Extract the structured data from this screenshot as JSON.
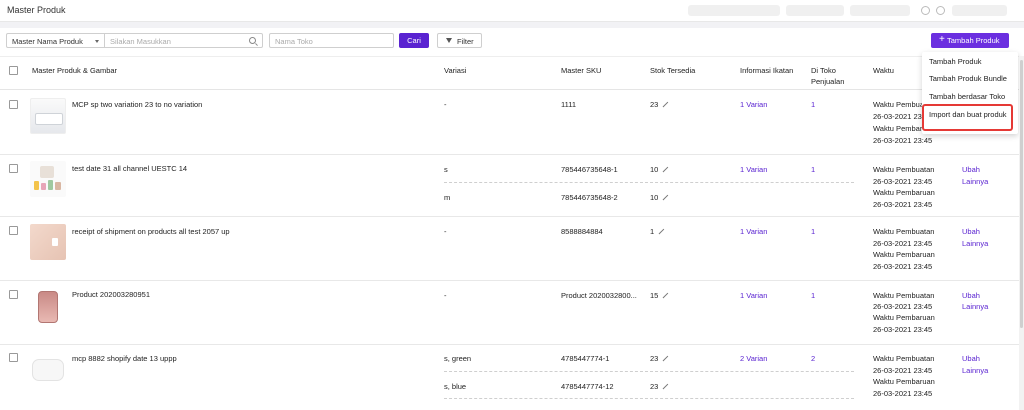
{
  "page": {
    "title": "Master Produk"
  },
  "filters": {
    "select_value": "Master Nama Produk",
    "search_placeholder": "Silakan Masukkan",
    "toko_placeholder": "Nama Toko",
    "cari_label": "Cari",
    "filter_label": "Filter",
    "tambah_label": "Tambah Produk"
  },
  "dropdown": {
    "items": [
      "Tambah Produk",
      "Tambah Produk Bundle",
      "Tambah berdasar Toko",
      "Import dan buat produk"
    ]
  },
  "table": {
    "headers": {
      "product": "Master Produk & Gambar",
      "variasi": "Variasi",
      "sku": "Master SKU",
      "stok": "Stok Tersedia",
      "ikatan": "Informasi Ikatan",
      "toko_1": "Di Toko",
      "toko_2": "Penjualan",
      "waktu": "Waktu"
    },
    "rows": [
      {
        "name": "MCP sp two variation 23 to no variation",
        "variants": [
          {
            "variasi": "-",
            "sku": "1111",
            "stok": "23"
          }
        ],
        "ikatan": "1 Varian",
        "toko": "1",
        "waktu": [
          "Waktu Pembuatan",
          "26-03-2021 23:45",
          "Waktu Pembaruan",
          "26-03-2021 23:45"
        ],
        "actions": []
      },
      {
        "name": "test date 31 all channel UESTC 14",
        "variants": [
          {
            "variasi": "s",
            "sku": "785446735648-1",
            "stok": "10"
          },
          {
            "variasi": "m",
            "sku": "785446735648-2",
            "stok": "10"
          }
        ],
        "ikatan": "1 Varian",
        "toko": "1",
        "waktu": [
          "Waktu Pembuatan",
          "26-03-2021 23:45",
          "Waktu Pembaruan",
          "26-03-2021 23:45"
        ],
        "actions": [
          "Ubah",
          "Lainnya"
        ]
      },
      {
        "name": "receipt of shipment on products all test 2057 up",
        "variants": [
          {
            "variasi": "-",
            "sku": "8588884884",
            "stok": "1"
          }
        ],
        "ikatan": "1 Varian",
        "toko": "1",
        "waktu": [
          "Waktu Pembuatan",
          "26-03-2021 23:45",
          "Waktu Pembaruan",
          "26-03-2021 23:45"
        ],
        "actions": [
          "Ubah",
          "Lainnya"
        ]
      },
      {
        "name": "Product 202003280951",
        "variants": [
          {
            "variasi": "-",
            "sku": "Product 2020032800...",
            "stok": "15"
          }
        ],
        "ikatan": "1 Varian",
        "toko": "1",
        "waktu": [
          "Waktu Pembuatan",
          "26-03-2021 23:45",
          "Waktu Pembaruan",
          "26-03-2021 23:45"
        ],
        "actions": [
          "Ubah",
          "Lainnya"
        ]
      },
      {
        "name": "mcp 8882 shopify date 13 uppp",
        "variants": [
          {
            "variasi": "s, green",
            "sku": "4785447774-1",
            "stok": "23"
          },
          {
            "variasi": "s, blue",
            "sku": "4785447774-12",
            "stok": "23"
          }
        ],
        "ikatan": "2 Varian",
        "toko": "2",
        "waktu": [
          "Waktu Pembuatan",
          "26-03-2021 23:45",
          "Waktu Pembaruan",
          "26-03-2021 23:45"
        ],
        "actions": [
          "Ubah",
          "Lainnya"
        ]
      }
    ]
  },
  "colors": {
    "accent": "#5a23d1",
    "highlight": "#e53935"
  }
}
